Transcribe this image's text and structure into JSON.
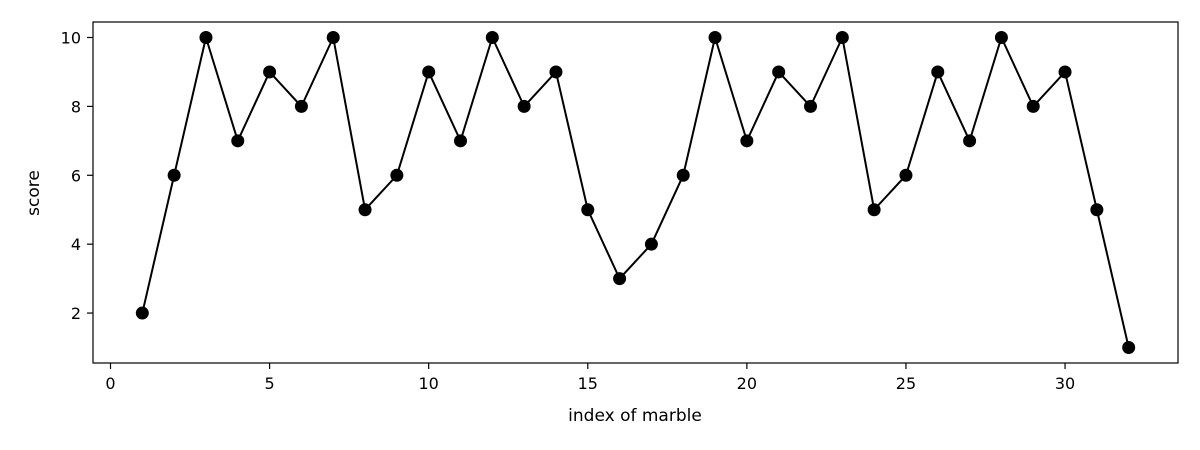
{
  "chart_data": {
    "type": "line",
    "title": "",
    "xlabel": "index of marble",
    "ylabel": "score",
    "xlim": [
      -0.55,
      33.55
    ],
    "ylim": [
      0.55,
      10.45
    ],
    "xticks": [
      0,
      5,
      10,
      15,
      20,
      25,
      30
    ],
    "yticks": [
      2,
      4,
      6,
      8,
      10
    ],
    "grid": false,
    "line_color": "#000000",
    "marker": "circle",
    "series": [
      {
        "x": [
          1,
          2,
          3,
          4,
          5,
          6,
          7,
          8,
          9,
          10,
          11,
          12,
          13,
          14,
          15,
          16,
          17,
          18,
          19,
          20,
          21,
          22,
          23,
          24,
          25,
          26,
          27,
          28,
          29,
          30,
          31,
          32
        ],
        "values": [
          2,
          6,
          10,
          7,
          9,
          8,
          10,
          5,
          6,
          9,
          7,
          10,
          8,
          9,
          5,
          3,
          4,
          6,
          10,
          7,
          9,
          8,
          10,
          5,
          6,
          9,
          7,
          10,
          8,
          9,
          5,
          1
        ]
      }
    ]
  }
}
